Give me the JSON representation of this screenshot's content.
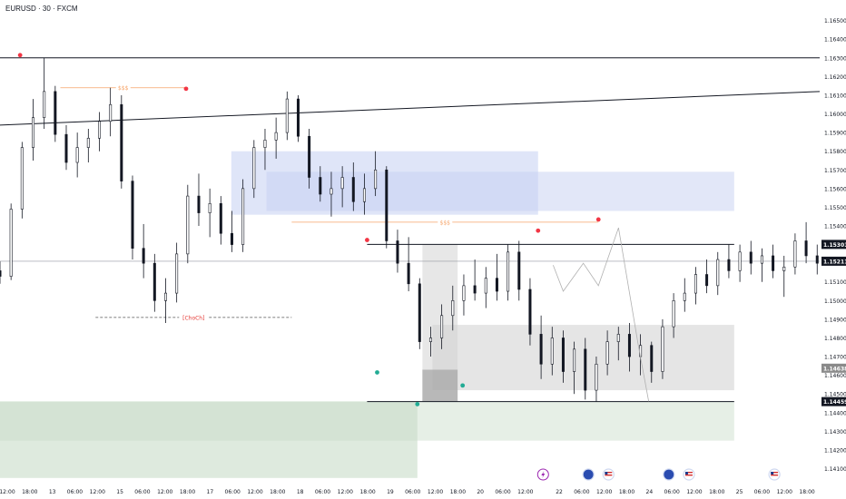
{
  "header": {
    "title": "EURUSD · 30 · FXCM"
  },
  "colors": {
    "up_candle": "#ffffff",
    "candle_outline": "#131722",
    "marker_red": "#f23645",
    "marker_green": "#22ab94",
    "annotation_orange": "#f7a56a",
    "choch_red": "#e53935",
    "blue_zone": "#c5cff2",
    "gray_zone": "#d4d4d4",
    "green_zone": "#c8dcc8",
    "line_black": "#131722",
    "projection_gray": "#b0b0b0"
  },
  "chart_data": {
    "type": "candlestick",
    "symbol": "EURUSD",
    "timeframe": "30",
    "ylim": [
      1.1402,
      1.1661
    ],
    "y_ticks": [
      "1.16500",
      "1.16400",
      "1.16300",
      "1.16200",
      "1.16100",
      "1.16000",
      "1.15900",
      "1.15800",
      "1.15700",
      "1.15600",
      "1.15500",
      "1.15400",
      "1.15300",
      "1.15200",
      "1.15100",
      "1.15000",
      "1.14900",
      "1.14800",
      "1.14700",
      "1.14600",
      "1.14500",
      "1.14400",
      "1.14300",
      "1.14200",
      "1.14100"
    ],
    "y_tick_values": [
      1.165,
      1.164,
      1.163,
      1.162,
      1.161,
      1.16,
      1.159,
      1.158,
      1.157,
      1.156,
      1.155,
      1.154,
      1.153,
      1.152,
      1.151,
      1.15,
      1.149,
      1.148,
      1.147,
      1.146,
      1.145,
      1.144,
      1.143,
      1.142,
      1.141
    ],
    "x_ticks": [
      "12:00",
      "18:00",
      "13",
      "06:00",
      "12:00",
      "15",
      "06:00",
      "12:00",
      "18:00",
      "17",
      "06:00",
      "12:00",
      "18:00",
      "18",
      "06:00",
      "12:00",
      "18:00",
      "19",
      "06:00",
      "12:00",
      "18:00",
      "20",
      "06:00",
      "12:00",
      "22",
      "06:00",
      "12:00",
      "18:00",
      "24",
      "06:00",
      "12:00",
      "18:00",
      "25",
      "06:00",
      "12:00",
      "18:00"
    ],
    "x_tick_positions": [
      0,
      4,
      8,
      12,
      16,
      20,
      24,
      28,
      32,
      36,
      40,
      44,
      48,
      52,
      56,
      60,
      64,
      68,
      72,
      76,
      80,
      84,
      88,
      92,
      98,
      102,
      106,
      110,
      114,
      118,
      122,
      126,
      130,
      134,
      138,
      142
    ],
    "price_labels": [
      {
        "text": "1.15301",
        "value": 1.15301,
        "style": "dark"
      },
      {
        "text": "1.15211",
        "value": 1.15211,
        "style": "dark"
      },
      {
        "text": "1.14638",
        "value": 1.14638,
        "style": "gray"
      },
      {
        "text": "1.14459",
        "value": 1.14459,
        "style": "dark"
      }
    ],
    "candles": [
      [
        1.1516,
        1.1521,
        1.1509,
        1.1513
      ],
      [
        1.1513,
        1.1552,
        1.1511,
        1.1549
      ],
      [
        1.1549,
        1.1585,
        1.1544,
        1.1582
      ],
      [
        1.1582,
        1.1608,
        1.1575,
        1.1598
      ],
      [
        1.1598,
        1.163,
        1.1592,
        1.1612
      ],
      [
        1.1612,
        1.1615,
        1.1585,
        1.1589
      ],
      [
        1.1589,
        1.1594,
        1.157,
        1.1574
      ],
      [
        1.1574,
        1.159,
        1.1566,
        1.1582
      ],
      [
        1.1582,
        1.1592,
        1.1574,
        1.1587
      ],
      [
        1.1587,
        1.1601,
        1.158,
        1.1596
      ],
      [
        1.1596,
        1.1614,
        1.1588,
        1.1605
      ],
      [
        1.1605,
        1.161,
        1.156,
        1.1564
      ],
      [
        1.1564,
        1.1567,
        1.1522,
        1.1528
      ],
      [
        1.1528,
        1.1541,
        1.1512,
        1.152
      ],
      [
        1.152,
        1.1525,
        1.1494,
        1.15
      ],
      [
        1.15,
        1.1512,
        1.1488,
        1.1504
      ],
      [
        1.1504,
        1.1531,
        1.1499,
        1.1525
      ],
      [
        1.1525,
        1.1562,
        1.152,
        1.1556
      ],
      [
        1.1556,
        1.1568,
        1.154,
        1.1547
      ],
      [
        1.1547,
        1.156,
        1.1534,
        1.1552
      ],
      [
        1.1552,
        1.1556,
        1.153,
        1.1536
      ],
      [
        1.1536,
        1.1548,
        1.1526,
        1.153
      ],
      [
        1.153,
        1.1565,
        1.1526,
        1.156
      ],
      [
        1.156,
        1.1586,
        1.1555,
        1.1582
      ],
      [
        1.1582,
        1.1592,
        1.157,
        1.1586
      ],
      [
        1.1586,
        1.1598,
        1.1576,
        1.159
      ],
      [
        1.159,
        1.1612,
        1.1586,
        1.1608
      ],
      [
        1.1608,
        1.161,
        1.1585,
        1.1588
      ],
      [
        1.1588,
        1.1592,
        1.156,
        1.1566
      ],
      [
        1.1566,
        1.1572,
        1.1553,
        1.1557
      ],
      [
        1.1557,
        1.1569,
        1.1545,
        1.156
      ],
      [
        1.156,
        1.1572,
        1.155,
        1.1566
      ],
      [
        1.1566,
        1.1574,
        1.1548,
        1.1553
      ],
      [
        1.1553,
        1.1568,
        1.1546,
        1.156
      ],
      [
        1.156,
        1.158,
        1.1556,
        1.157
      ],
      [
        1.157,
        1.1572,
        1.1528,
        1.1532
      ],
      [
        1.1532,
        1.1538,
        1.1515,
        1.152
      ],
      [
        1.152,
        1.1534,
        1.1505,
        1.1509
      ],
      [
        1.1509,
        1.1512,
        1.1474,
        1.1478
      ],
      [
        1.1478,
        1.1486,
        1.147,
        1.148
      ],
      [
        1.148,
        1.1498,
        1.1474,
        1.1492
      ],
      [
        1.1492,
        1.1508,
        1.1484,
        1.15
      ],
      [
        1.15,
        1.1514,
        1.1492,
        1.1508
      ],
      [
        1.1508,
        1.1522,
        1.15,
        1.1504
      ],
      [
        1.1504,
        1.1518,
        1.1496,
        1.1512
      ],
      [
        1.1512,
        1.1525,
        1.15,
        1.1505
      ],
      [
        1.1505,
        1.153,
        1.15,
        1.1526
      ],
      [
        1.1526,
        1.1532,
        1.15,
        1.1506
      ],
      [
        1.1506,
        1.1512,
        1.1476,
        1.1482
      ],
      [
        1.1482,
        1.1492,
        1.1458,
        1.1466
      ],
      [
        1.1466,
        1.1486,
        1.146,
        1.148
      ],
      [
        1.148,
        1.1484,
        1.1456,
        1.1462
      ],
      [
        1.1462,
        1.1478,
        1.145,
        1.1474
      ],
      [
        1.1474,
        1.148,
        1.1447,
        1.1452
      ],
      [
        1.1452,
        1.147,
        1.1446,
        1.1466
      ],
      [
        1.1466,
        1.1484,
        1.146,
        1.1478
      ],
      [
        1.1478,
        1.1486,
        1.1468,
        1.1482
      ],
      [
        1.1482,
        1.1488,
        1.1462,
        1.147
      ],
      [
        1.147,
        1.1482,
        1.146,
        1.1476
      ],
      [
        1.1476,
        1.1478,
        1.1456,
        1.1462
      ],
      [
        1.1462,
        1.149,
        1.1458,
        1.1486
      ],
      [
        1.1486,
        1.1504,
        1.148,
        1.15
      ],
      [
        1.15,
        1.1512,
        1.1494,
        1.1504
      ],
      [
        1.1504,
        1.1518,
        1.1498,
        1.1514
      ],
      [
        1.1514,
        1.1522,
        1.1504,
        1.1508
      ],
      [
        1.1508,
        1.1526,
        1.1503,
        1.1522
      ],
      [
        1.1522,
        1.153,
        1.1512,
        1.1516
      ],
      [
        1.1516,
        1.153,
        1.151,
        1.1526
      ],
      [
        1.1526,
        1.1532,
        1.1514,
        1.152
      ],
      [
        1.152,
        1.1528,
        1.151,
        1.1524
      ],
      [
        1.1524,
        1.153,
        1.1512,
        1.1516
      ],
      [
        1.1516,
        1.1524,
        1.1502,
        1.1518
      ],
      [
        1.1518,
        1.1536,
        1.1514,
        1.1532
      ],
      [
        1.1532,
        1.1542,
        1.152,
        1.1524
      ],
      [
        1.1524,
        1.153,
        1.1514,
        1.152
      ],
      [
        1.152,
        1.1524,
        1.1506,
        1.1514
      ]
    ],
    "candle_x_start": 0,
    "candle_x_step": 1.22,
    "markers": [
      {
        "type": "swing_high",
        "color": "red",
        "x": 4,
        "y": 1.163
      },
      {
        "type": "swing_high",
        "color": "red",
        "x": 37,
        "y": 1.1612
      },
      {
        "type": "swing_high",
        "color": "red",
        "x": 73,
        "y": 1.1531
      },
      {
        "type": "swing_high",
        "color": "red",
        "x": 107,
        "y": 1.1536
      },
      {
        "type": "swing_high",
        "color": "red",
        "x": 119,
        "y": 1.1542
      },
      {
        "type": "swing_low",
        "color": "green",
        "x": 75,
        "y": 1.1463
      },
      {
        "type": "swing_low",
        "color": "green",
        "x": 83,
        "y": 1.1446
      },
      {
        "type": "swing_low",
        "color": "green",
        "x": 92,
        "y": 1.1456
      }
    ],
    "annotations": [
      {
        "text": "$$$",
        "color": "orange",
        "x1": 12,
        "x2": 37,
        "y": 1.1614
      },
      {
        "text": "$$$",
        "color": "orange",
        "x1": 58,
        "x2": 119,
        "y": 1.1542
      },
      {
        "text": "[ChoCh]",
        "color": "red",
        "x1": 19,
        "x2": 58,
        "y": 1.1491,
        "dashed": true
      }
    ],
    "lines": [
      {
        "kind": "horizontal",
        "y": 1.163,
        "from": 0,
        "to": 163
      },
      {
        "kind": "trendline",
        "x1": 0,
        "y1": 1.1594,
        "x2": 163,
        "y2": 1.1612
      },
      {
        "kind": "horizontal",
        "y": 1.15301,
        "from": 73,
        "to": 146
      },
      {
        "kind": "horizontal",
        "y": 1.14459,
        "from": 73,
        "to": 146
      },
      {
        "kind": "horizontal_thin",
        "y": 1.15211,
        "from": 0,
        "to": 163
      }
    ],
    "zones": [
      {
        "name": "blue_zone_1",
        "color": "blue",
        "x1": 46,
        "x2": 107,
        "y1": 1.158,
        "y2": 1.1546,
        "opacity": 0.55
      },
      {
        "name": "blue_zone_2",
        "color": "blue",
        "x1": 53,
        "x2": 146,
        "y1": 1.1569,
        "y2": 1.1548,
        "opacity": 0.5
      },
      {
        "name": "gray_zone_1",
        "color": "gray",
        "x1": 84,
        "x2": 91,
        "y1": 1.153,
        "y2": 1.1446,
        "opacity": 0.55
      },
      {
        "name": "gray_zone_2",
        "color": "gray",
        "x1": 86,
        "x2": 146,
        "y1": 1.1487,
        "y2": 1.1452,
        "opacity": 0.6
      },
      {
        "name": "dark_gray_box",
        "color": "darkgray",
        "x1": 84,
        "x2": 91,
        "y1": 1.1463,
        "y2": 1.1446,
        "opacity": 0.6
      },
      {
        "name": "green_zone_1",
        "color": "green",
        "x1": 0,
        "x2": 83,
        "y1": 1.1446,
        "y2": 1.1405,
        "opacity": 0.6
      },
      {
        "name": "green_zone_2",
        "color": "green",
        "x1": 0,
        "x2": 146,
        "y1": 1.1446,
        "y2": 1.1425,
        "opacity": 0.45
      }
    ],
    "projection": [
      [
        110,
        1.1519
      ],
      [
        112,
        1.1505
      ],
      [
        116,
        1.152
      ],
      [
        119,
        1.1508
      ],
      [
        123,
        1.1539
      ],
      [
        127,
        1.1475
      ],
      [
        129,
        1.1446
      ]
    ],
    "event_icons": [
      {
        "x": 108,
        "icon": "lightning"
      },
      {
        "x": 117,
        "icon": "blue-circle"
      },
      {
        "x": 121,
        "icon": "us-flag"
      },
      {
        "x": 133,
        "icon": "blue-circle"
      },
      {
        "x": 137,
        "icon": "us-flag"
      },
      {
        "x": 154,
        "icon": "us-flag"
      }
    ]
  }
}
